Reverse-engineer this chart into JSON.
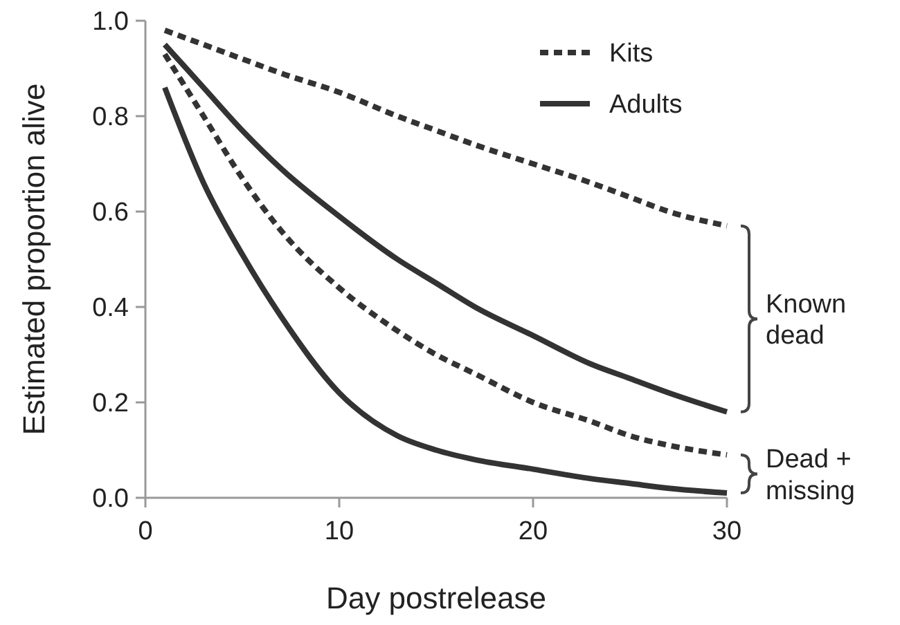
{
  "chart_data": {
    "type": "line",
    "xlabel": "Day postrelease",
    "ylabel": "Estimated proportion alive",
    "xlim": [
      0,
      30
    ],
    "ylim": [
      0,
      1
    ],
    "xticks": [
      0,
      10,
      20,
      30
    ],
    "yticks": [
      {
        "value": 0,
        "label": "0.0"
      },
      {
        "value": 0.2,
        "label": "0.2"
      },
      {
        "value": 0.4,
        "label": "0.4"
      },
      {
        "value": 0.6,
        "label": "0.6"
      },
      {
        "value": 0.8,
        "label": "0.8"
      },
      {
        "value": 1,
        "label": "1.0"
      }
    ],
    "grid": false,
    "legend": "top right",
    "series": [
      {
        "name": "Kits",
        "color": "#333333",
        "line_style": "dotted",
        "x": [
          1,
          3,
          5,
          7,
          10,
          13,
          15,
          17,
          20,
          23,
          25,
          27,
          30
        ],
        "values": [
          0.98,
          0.95,
          0.92,
          0.89,
          0.85,
          0.8,
          0.77,
          0.74,
          0.7,
          0.66,
          0.63,
          0.6,
          0.57
        ]
      },
      {
        "color": "#333333",
        "line_style": "dotted",
        "x": [
          1,
          3,
          5,
          7,
          10,
          13,
          15,
          17,
          20,
          23,
          25,
          27,
          30
        ],
        "values": [
          0.93,
          0.8,
          0.67,
          0.56,
          0.44,
          0.35,
          0.3,
          0.26,
          0.2,
          0.16,
          0.13,
          0.11,
          0.09
        ]
      },
      {
        "name": "Adults",
        "color": "#333333",
        "line_style": "solid",
        "x": [
          1,
          3,
          5,
          7,
          10,
          13,
          15,
          17,
          20,
          23,
          25,
          27,
          30
        ],
        "values": [
          0.95,
          0.86,
          0.77,
          0.69,
          0.59,
          0.5,
          0.45,
          0.4,
          0.34,
          0.28,
          0.25,
          0.22,
          0.18
        ]
      },
      {
        "color": "#333333",
        "line_style": "solid",
        "x": [
          1,
          3,
          5,
          7,
          10,
          13,
          15,
          17,
          20,
          23,
          25,
          27,
          30
        ],
        "values": [
          0.86,
          0.66,
          0.51,
          0.38,
          0.22,
          0.13,
          0.1,
          0.08,
          0.06,
          0.04,
          0.03,
          0.02,
          0.01
        ]
      }
    ],
    "annotations": [
      "Known dead",
      "Dead + missing"
    ]
  }
}
